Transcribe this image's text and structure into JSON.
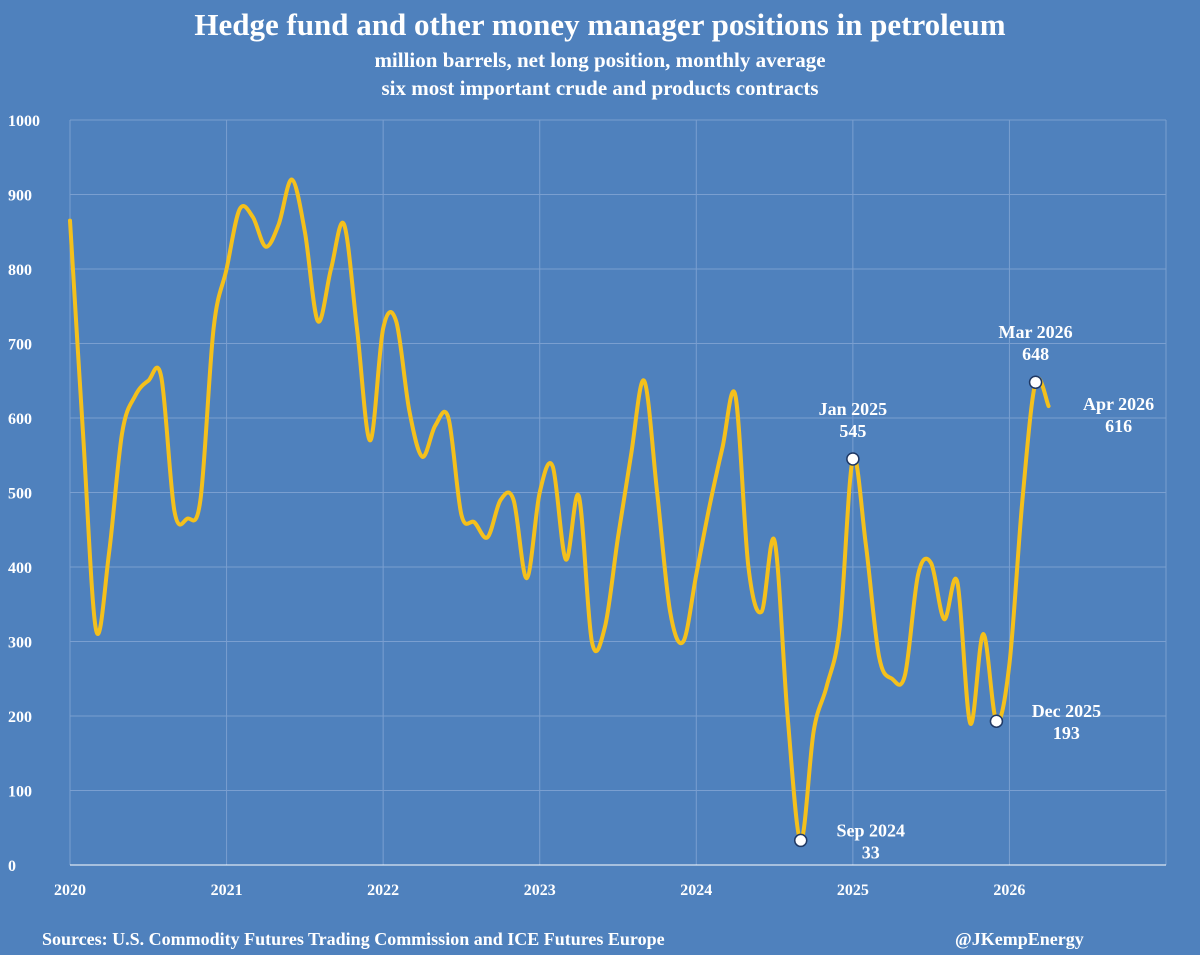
{
  "header": {
    "title": "Hedge fund and other money manager positions in petroleum",
    "subtitle1": "million barrels, net long position, monthly average",
    "subtitle2": "six most important crude and products contracts"
  },
  "footer": {
    "source": "Sources: U.S. Commodity Futures Trading Commission and ICE Futures Europe",
    "credit": "@JKempEnergy"
  },
  "colors": {
    "background": "#4f81bd",
    "line": "#f4c01c",
    "grid": "#7a9fd0",
    "text": "#ffffff",
    "marker_fill": "#ffffff",
    "marker_stroke": "#1f3864"
  },
  "chart_data": {
    "type": "line",
    "title": "Hedge fund and other money manager positions in petroleum",
    "xlabel": "",
    "ylabel": "",
    "xlim": [
      2020.0,
      2027.0
    ],
    "ylim": [
      0,
      1000
    ],
    "yticks": [
      0,
      100,
      200,
      300,
      400,
      500,
      600,
      700,
      800,
      900,
      1000
    ],
    "xticks": [
      2020,
      2021,
      2022,
      2023,
      2024,
      2025,
      2026
    ],
    "grid": true,
    "legend": "none",
    "series": [
      {
        "values": [
          [
            2020.0,
            865
          ],
          [
            2020.083,
            580
          ],
          [
            2020.167,
            315
          ],
          [
            2020.25,
            420
          ],
          [
            2020.333,
            580
          ],
          [
            2020.417,
            630
          ],
          [
            2020.5,
            650
          ],
          [
            2020.583,
            655
          ],
          [
            2020.667,
            475
          ],
          [
            2020.75,
            465
          ],
          [
            2020.833,
            490
          ],
          [
            2020.917,
            720
          ],
          [
            2021.0,
            800
          ],
          [
            2021.083,
            880
          ],
          [
            2021.167,
            870
          ],
          [
            2021.25,
            830
          ],
          [
            2021.333,
            860
          ],
          [
            2021.417,
            920
          ],
          [
            2021.5,
            850
          ],
          [
            2021.583,
            730
          ],
          [
            2021.667,
            800
          ],
          [
            2021.75,
            860
          ],
          [
            2021.833,
            720
          ],
          [
            2021.917,
            570
          ],
          [
            2022.0,
            720
          ],
          [
            2022.083,
            730
          ],
          [
            2022.167,
            610
          ],
          [
            2022.25,
            548
          ],
          [
            2022.333,
            590
          ],
          [
            2022.417,
            600
          ],
          [
            2022.5,
            470
          ],
          [
            2022.583,
            460
          ],
          [
            2022.667,
            440
          ],
          [
            2022.75,
            490
          ],
          [
            2022.833,
            490
          ],
          [
            2022.917,
            385
          ],
          [
            2023.0,
            500
          ],
          [
            2023.083,
            535
          ],
          [
            2023.167,
            410
          ],
          [
            2023.25,
            495
          ],
          [
            2023.333,
            300
          ],
          [
            2023.417,
            320
          ],
          [
            2023.5,
            440
          ],
          [
            2023.583,
            550
          ],
          [
            2023.667,
            650
          ],
          [
            2023.75,
            500
          ],
          [
            2023.833,
            340
          ],
          [
            2023.917,
            300
          ],
          [
            2024.0,
            390
          ],
          [
            2024.083,
            480
          ],
          [
            2024.167,
            560
          ],
          [
            2024.25,
            630
          ],
          [
            2024.333,
            400
          ],
          [
            2024.417,
            340
          ],
          [
            2024.5,
            435
          ],
          [
            2024.583,
            200
          ],
          [
            2024.667,
            33
          ],
          [
            2024.75,
            180
          ],
          [
            2024.833,
            240
          ],
          [
            2024.917,
            320
          ],
          [
            2025.0,
            545
          ],
          [
            2025.083,
            430
          ],
          [
            2025.167,
            280
          ],
          [
            2025.25,
            250
          ],
          [
            2025.333,
            255
          ],
          [
            2025.417,
            390
          ],
          [
            2025.5,
            405
          ],
          [
            2025.583,
            330
          ],
          [
            2025.667,
            380
          ],
          [
            2025.75,
            190
          ],
          [
            2025.833,
            310
          ],
          [
            2025.917,
            193
          ],
          [
            2026.0,
            270
          ],
          [
            2026.083,
            490
          ],
          [
            2026.167,
            648
          ],
          [
            2026.25,
            616
          ]
        ]
      }
    ],
    "annotations": [
      {
        "label": "Sep 2024",
        "value": "33",
        "x": 2024.667,
        "y": 33,
        "placement": "right-below"
      },
      {
        "label": "Jan 2025",
        "value": "545",
        "x": 2025.0,
        "y": 545,
        "placement": "above"
      },
      {
        "label": "Dec 2025",
        "value": "193",
        "x": 2025.917,
        "y": 193,
        "placement": "right"
      },
      {
        "label": "Mar 2026",
        "value": "648",
        "x": 2026.167,
        "y": 648,
        "placement": "above"
      },
      {
        "label": "Apr 2026",
        "value": "616",
        "x": 2026.25,
        "y": 616,
        "placement": "right-label-only"
      }
    ]
  }
}
